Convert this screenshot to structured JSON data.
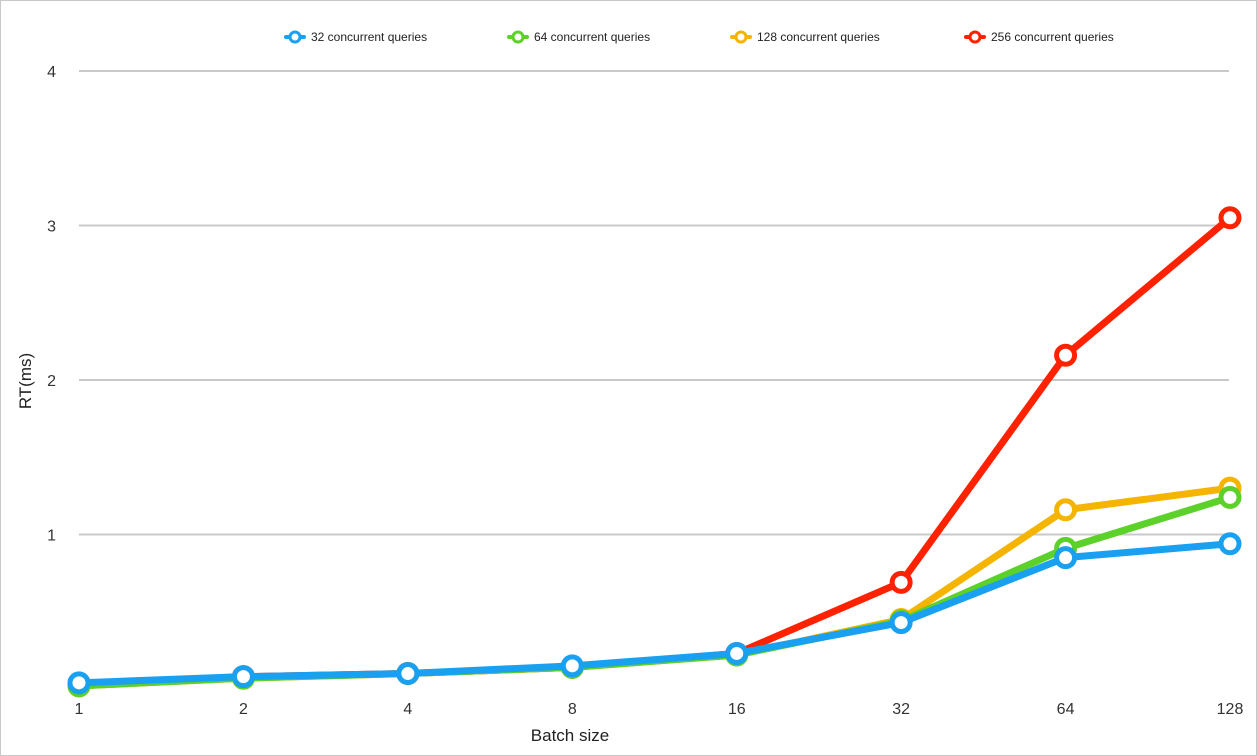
{
  "chart_data": {
    "type": "line",
    "xlabel": "Batch size",
    "ylabel": "RT(ms)",
    "categories": [
      "1",
      "2",
      "4",
      "8",
      "16",
      "32",
      "64",
      "128"
    ],
    "ylim": [
      0,
      4
    ],
    "yticks": [
      "1",
      "2",
      "3",
      "4"
    ],
    "grid": true,
    "legend_position": "top",
    "series": [
      {
        "name": "256 concurrent queries",
        "color": "#ff2200",
        "values": [
          0.03,
          0.08,
          0.1,
          0.14,
          0.23,
          0.69,
          2.16,
          3.05
        ]
      },
      {
        "name": "128 concurrent queries",
        "color": "#f5b400",
        "values": [
          0.02,
          0.07,
          0.1,
          0.14,
          0.22,
          0.45,
          1.16,
          1.3
        ]
      },
      {
        "name": "64 concurrent queries",
        "color": "#5bd12a",
        "values": [
          0.02,
          0.07,
          0.1,
          0.14,
          0.22,
          0.44,
          0.91,
          1.24
        ]
      },
      {
        "name": "32 concurrent queries",
        "color": "#19a0f0",
        "values": [
          0.04,
          0.08,
          0.1,
          0.15,
          0.23,
          0.43,
          0.85,
          0.94
        ]
      }
    ],
    "legend_order": [
      3,
      2,
      1,
      0
    ]
  }
}
